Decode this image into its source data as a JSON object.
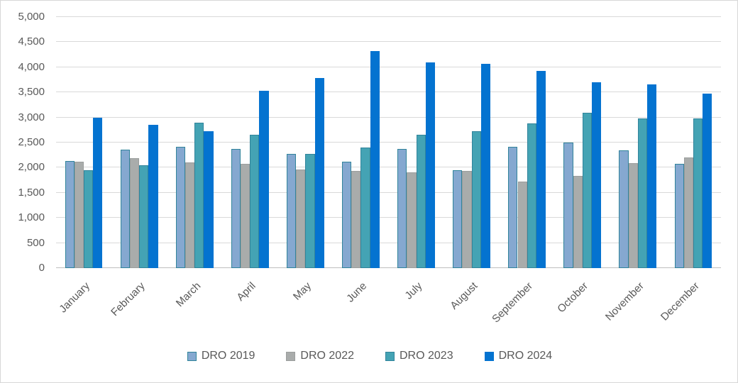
{
  "chart_data": {
    "type": "bar",
    "title": "",
    "xlabel": "",
    "ylabel": "",
    "categories": [
      "January",
      "February",
      "March",
      "April",
      "May",
      "June",
      "July",
      "August",
      "September",
      "October",
      "November",
      "December"
    ],
    "series": [
      {
        "name": "DRO 2019",
        "color": "#85a8d0",
        "border_color": "#31849b",
        "values": [
          2140,
          2360,
          2420,
          2380,
          2280,
          2120,
          2380,
          1950,
          2420,
          2500,
          2340,
          2070
        ]
      },
      {
        "name": "DRO 2022",
        "color": "#a9acab",
        "border_color": "#9b9e9d",
        "values": [
          2120,
          2190,
          2100,
          2070,
          1960,
          1930,
          1910,
          1940,
          1730,
          1840,
          2090,
          2210
        ]
      },
      {
        "name": "DRO 2023",
        "color": "#44a3b4",
        "border_color": "#31849b",
        "values": [
          1950,
          2050,
          2900,
          2650,
          2270,
          2400,
          2650,
          2730,
          2880,
          3100,
          2980,
          2980
        ]
      },
      {
        "name": "DRO 2024",
        "color": "#0473d0",
        "border_color": "#0473d0",
        "values": [
          3000,
          2850,
          2720,
          3530,
          3790,
          4320,
          4100,
          4070,
          3930,
          3700,
          3660,
          3470
        ]
      }
    ],
    "ylim": [
      0,
      5000
    ],
    "ytick_step": 500,
    "ytick_labels": [
      "0",
      "500",
      "1,000",
      "1,500",
      "2,000",
      "2,500",
      "3,000",
      "3,500",
      "4,000",
      "4,500",
      "5,000"
    ],
    "grid": true,
    "gridline_color": "#d9d9d9",
    "axis_line_color": "#bfbfbf",
    "tick_label_color": "#595959",
    "legend_position": "bottom",
    "legend_entries": [
      "DRO 2019",
      "DRO 2022",
      "DRO 2023",
      "DRO 2024"
    ]
  }
}
